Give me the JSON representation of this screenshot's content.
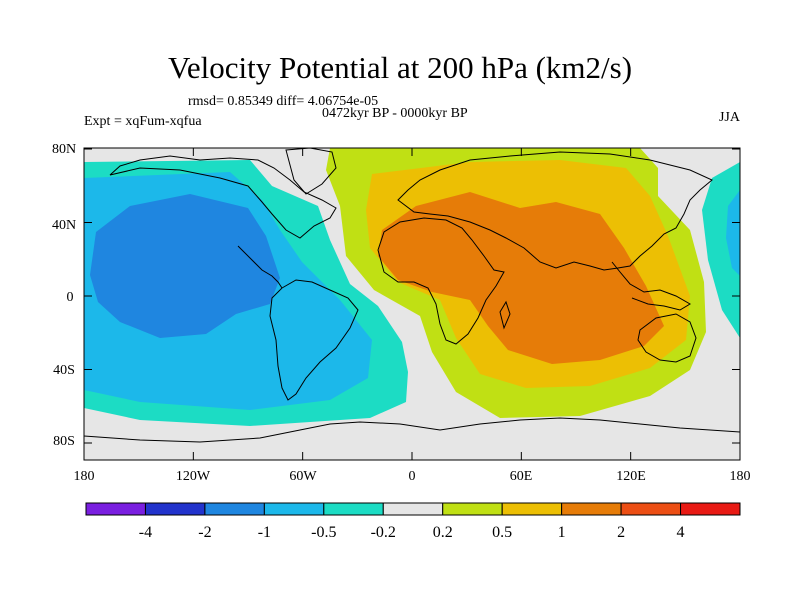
{
  "title": "Velocity Potential at 200 hPa (km2/s)",
  "stats": "rmsd= 0.85349 diff= 4.06754e-05",
  "period": "0472kyr BP - 0000kyr BP",
  "experiment": "Expt = xqFum-xqfua",
  "season": "JJA",
  "y_ticks": [
    "80N",
    "40N",
    "0",
    "40S",
    "80S"
  ],
  "x_ticks": [
    "180",
    "120W",
    "60W",
    "0",
    "60E",
    "120E",
    "180"
  ],
  "colorbar": {
    "labels": [
      "-4",
      "-2",
      "-1",
      "-0.5",
      "-0.2",
      "0.2",
      "0.5",
      "1",
      "2",
      "4"
    ],
    "colors": [
      "#7a1fe0",
      "#2233cc",
      "#1f86e0",
      "#1cb8ea",
      "#1cdcc4",
      "#e6e6e6",
      "#c0e014",
      "#ecbf04",
      "#e67c08",
      "#ec4e14",
      "#e81a14"
    ]
  },
  "map_colors": {
    "lev_n2": "#1f86e0",
    "lev_n1": "#1cb8ea",
    "lev_n05": "#1cdcc4",
    "neutral": "#e6e6e6",
    "lev_p02": "#c0e014",
    "lev_p05": "#ecbf04",
    "lev_p1": "#e67c08"
  }
}
